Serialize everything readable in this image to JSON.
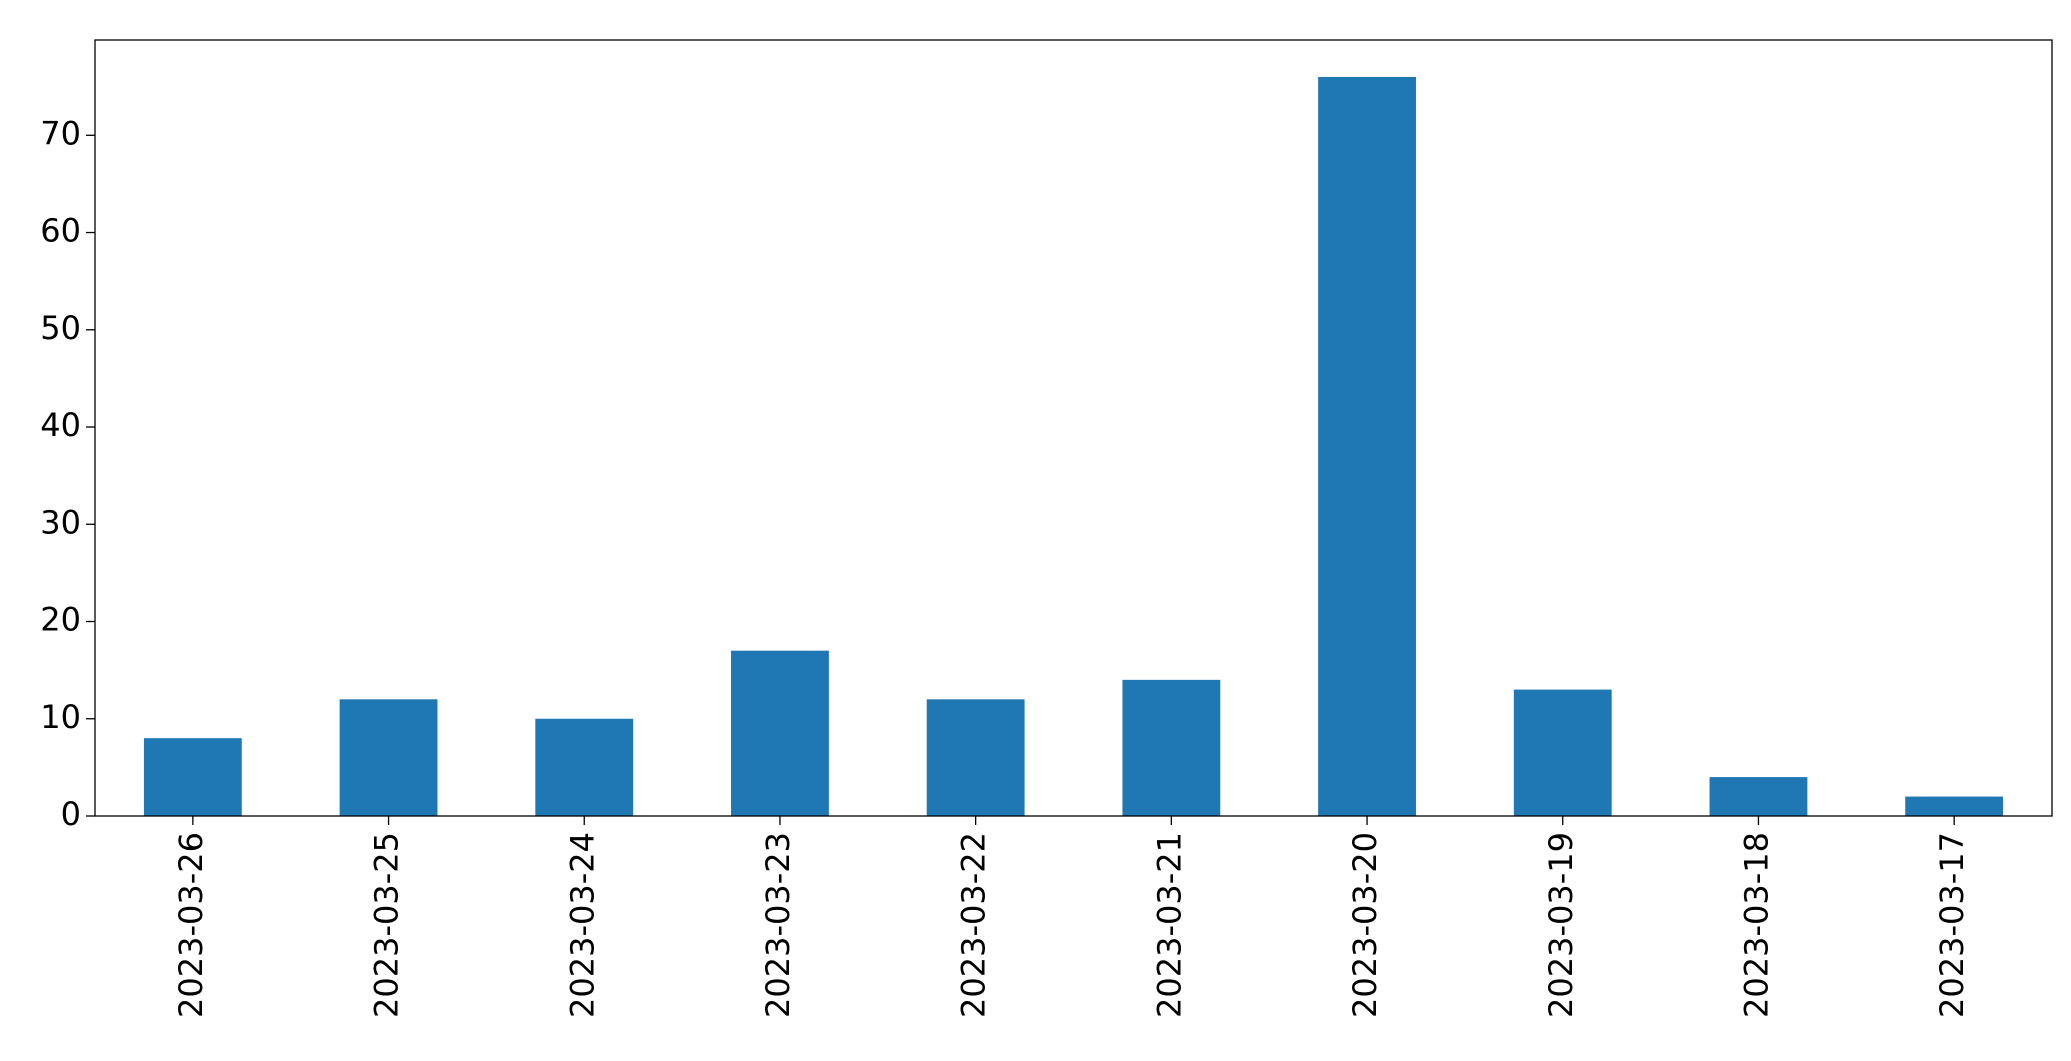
{
  "chart_data": {
    "type": "bar",
    "categories": [
      "2023-03-26",
      "2023-03-25",
      "2023-03-24",
      "2023-03-23",
      "2023-03-22",
      "2023-03-21",
      "2023-03-20",
      "2023-03-19",
      "2023-03-18",
      "2023-03-17"
    ],
    "values": [
      8,
      12,
      10,
      17,
      12,
      14,
      76,
      13,
      4,
      2
    ],
    "color": "#1f77b4",
    "ylim": [
      0,
      79.8
    ],
    "yticks": [
      0,
      10,
      20,
      30,
      40,
      50,
      60,
      70
    ],
    "grid": false
  }
}
